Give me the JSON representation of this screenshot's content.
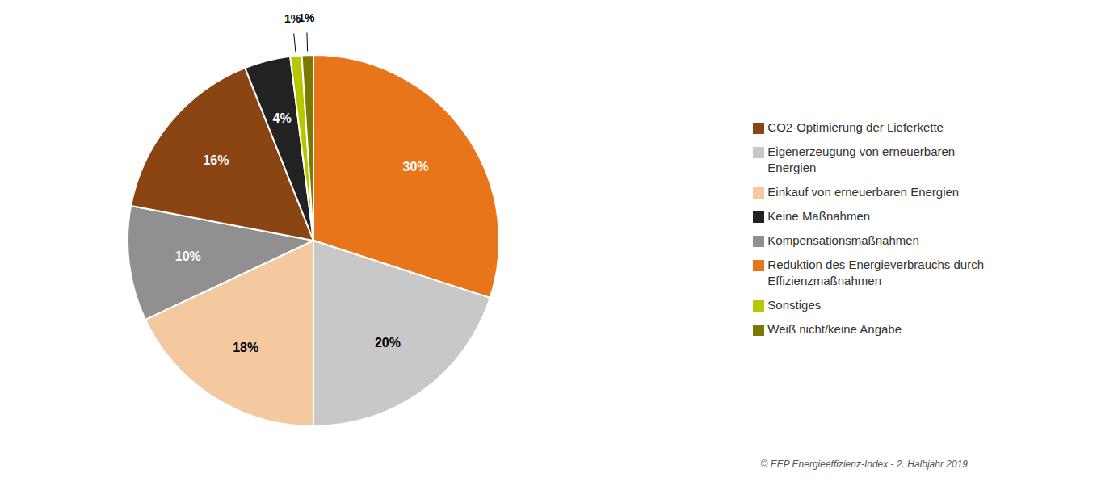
{
  "chart_data": {
    "type": "pie",
    "categories": [
      "Reduktion des Energieverbrauchs durch\nEffizienzmaßnahmen",
      "Eigenerzeugung von erneuerbaren\nEnergien",
      "Einkauf von erneuerbaren Energien",
      "Kompensationsmaßnahmen",
      "CO2-Optimierung der Lieferkette",
      "Keine Maßnahmen",
      "Sonstiges",
      "Weiß nicht/keine Angabe"
    ],
    "values": [
      30,
      20,
      18,
      10,
      16,
      4,
      1,
      1
    ],
    "value_labels": [
      "30%",
      "20%",
      "18%",
      "10%",
      "16%",
      "4%",
      "1%",
      "1%"
    ],
    "colors": [
      "#E8751A",
      "#C8C8C8",
      "#F5C9A0",
      "#909090",
      "#8B4513",
      "#222222",
      "#B8C800",
      "#7A7A00"
    ],
    "data_labels": true,
    "legend": "right",
    "annotations": [
      "© EEP Energieeffizienz-Index - 2. Halbjahr 2019"
    ]
  }
}
